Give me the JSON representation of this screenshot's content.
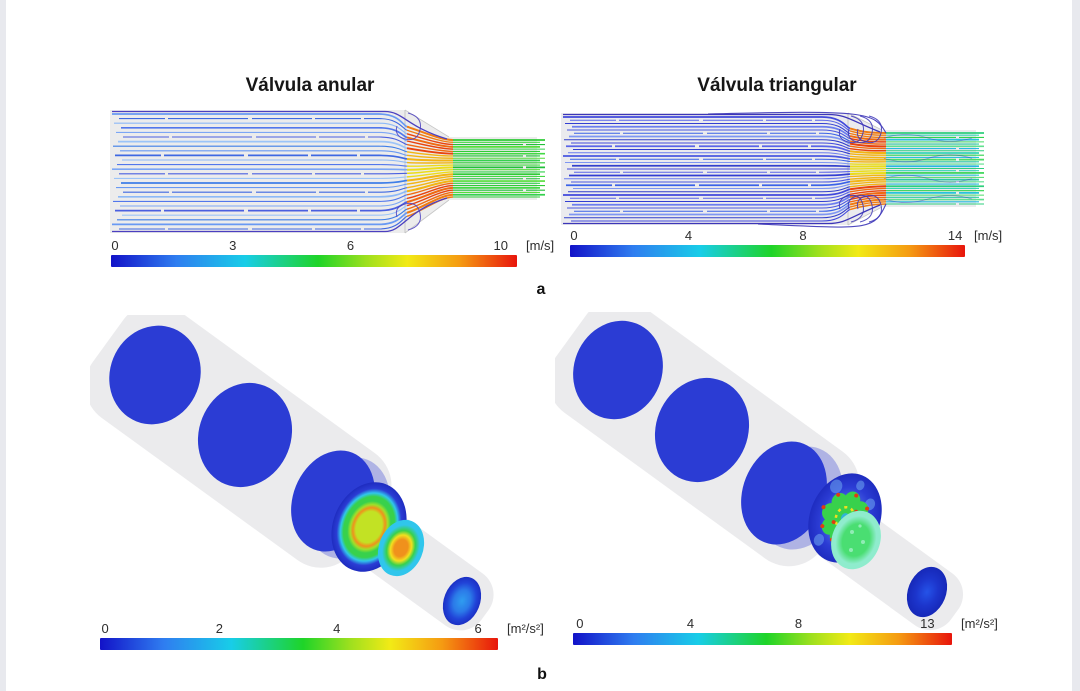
{
  "figure": {
    "panel_a": {
      "label": "a",
      "left": {
        "title": "Válvula anular",
        "colorbar": {
          "ticks": [
            "0",
            "3",
            "6",
            "10"
          ],
          "unit": "[m/s]"
        }
      },
      "right": {
        "title": "Válvula triangular",
        "colorbar": {
          "ticks": [
            "0",
            "4",
            "8",
            "14"
          ],
          "unit": "[m/s]"
        }
      }
    },
    "panel_b": {
      "label": "b",
      "left": {
        "colorbar": {
          "ticks": [
            "0",
            "2",
            "4",
            "6"
          ],
          "unit": "[m²/s²]"
        }
      },
      "right": {
        "colorbar": {
          "ticks": [
            "0",
            "4",
            "8",
            "13"
          ],
          "unit": "[m²/s²]"
        }
      }
    }
  },
  "figure_data": {
    "type": "cfd-colormap-figure",
    "scales": [
      {
        "panel": "a-left",
        "title": "Válvula anular",
        "min": 0,
        "max": 10,
        "ticks": [
          0,
          3,
          6,
          10
        ],
        "unit": "m/s"
      },
      {
        "panel": "a-right",
        "title": "Válvula triangular",
        "min": 0,
        "max": 14,
        "ticks": [
          0,
          4,
          8,
          14
        ],
        "unit": "m/s"
      },
      {
        "panel": "b-left",
        "min": 0,
        "max": 6,
        "ticks": [
          0,
          2,
          4,
          6
        ],
        "unit": "m²/s²"
      },
      {
        "panel": "b-right",
        "min": 0,
        "max": 13,
        "ticks": [
          0,
          4,
          8,
          13
        ],
        "unit": "m²/s²"
      }
    ],
    "legend_position": "below each panel",
    "colormap": "rainbow"
  },
  "palette": {
    "page_bg": "#e8e9ee",
    "rainbow_0": "#1212c8",
    "rainbow_1": "#2f7df0",
    "rainbow_2": "#18cde8",
    "rainbow_3": "#1ed428",
    "rainbow_4": "#9fe01e",
    "rainbow_5": "#f2ea16",
    "rainbow_6": "#f59a12",
    "rainbow_7": "#e8150c",
    "disk_blue": "#2b3cd4",
    "disk_blue_dark": "#1e2cc0",
    "lavender": "#a8ade2",
    "cylinder_gray": "#d8d8dc",
    "yellow_green": "#c2e224",
    "yellow_green2": "#9fe02a",
    "orange": "#f0911c",
    "red_dot": "#e03c10",
    "green": "#38d14c",
    "green2": "#4ade72",
    "cyan": "#30c6ec",
    "sky": "#2f9df0",
    "mint": "#8feccd",
    "yellow": "#f2e01e"
  },
  "flow_panels": {
    "annular": {
      "n": 26,
      "body_color": "#ececec",
      "edge_color": "#c6c6c6",
      "navy": "#4b3fc0",
      "blues": [
        "#6899f3",
        "#3e68e2",
        "#8db9f7",
        "#5277ec",
        "#7ba6f5",
        "#4a5fe0",
        "#9cc4f8",
        "#3e7ee8"
      ],
      "hot": [
        "#f07c12",
        "#e8430e",
        "#f06a10",
        "#f2b414",
        "#ecdc1a"
      ],
      "out": [
        "#2fcb37",
        "#43d944",
        "#22c03a",
        "#55de3a",
        "#35d14e"
      ],
      "loops": 1,
      "strands": 0
    },
    "triangular": {
      "n": 33,
      "body_color": "#ebebee",
      "edge_color": "#c6c6c6",
      "navy": "#3c35b8",
      "blues": [
        "#4149dc",
        "#5a64e8",
        "#323ed2",
        "#6b7def",
        "#4a57e0",
        "#3a62e8",
        "#7e96f2",
        "#3340cc"
      ],
      "hot": [
        "#f07c12",
        "#e8430e",
        "#f06a10",
        "#f2b414",
        "#eadc1c"
      ],
      "out": [
        "#2ecf7d",
        "#35d4b8",
        "#2fd44d",
        "#27c3da",
        "#4adc66",
        "#2cc9a6",
        "#5fe08e",
        "#28b8e0"
      ],
      "loops": 3,
      "strands": 4
    }
  }
}
